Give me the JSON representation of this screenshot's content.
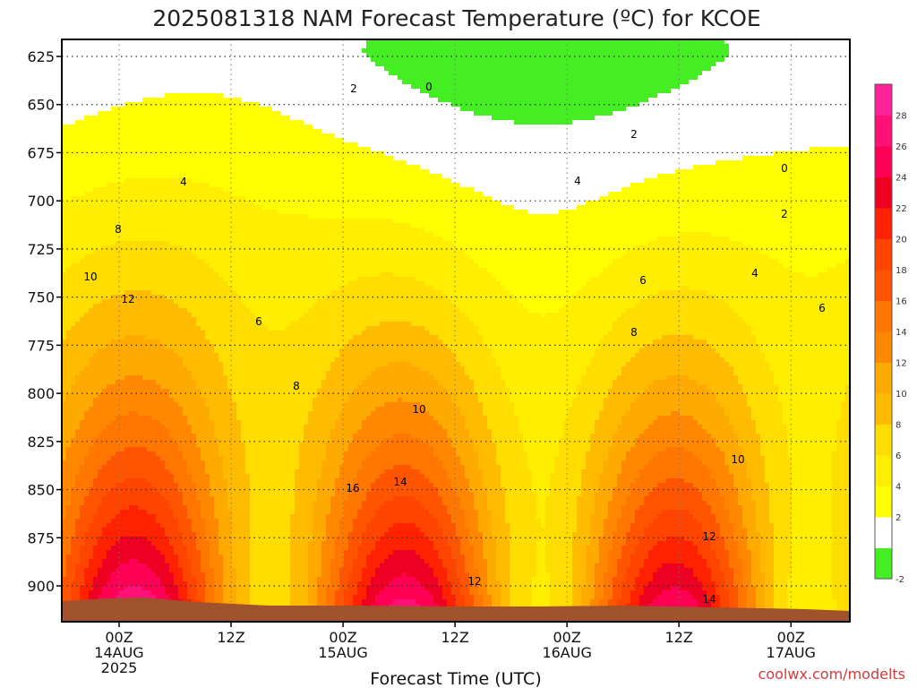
{
  "chart_data": {
    "type": "heatmap",
    "title": "2025081318 NAM Forecast Temperature (ºC) for KCOE",
    "xlabel": "Forecast Time (UTC)",
    "ylabel": "",
    "watermark": "coolwx.com/modelts",
    "y_ticks": [
      625,
      650,
      675,
      700,
      725,
      750,
      775,
      800,
      825,
      850,
      875,
      900
    ],
    "ylim": [
      615,
      916
    ],
    "x_range_hours": [
      -5,
      65
    ],
    "x_ticks": [
      {
        "hours": 0,
        "line1": "00Z",
        "line2": "14AUG",
        "line3": "2025"
      },
      {
        "hours": 12,
        "line1": "12Z",
        "line2": "",
        "line3": ""
      },
      {
        "hours": 24,
        "line1": "00Z",
        "line2": "15AUG",
        "line3": ""
      },
      {
        "hours": 36,
        "line1": "12Z",
        "line2": "",
        "line3": ""
      },
      {
        "hours": 48,
        "line1": "00Z",
        "line2": "16AUG",
        "line3": ""
      },
      {
        "hours": 60,
        "line1": "12Z",
        "line2": "",
        "line3": ""
      },
      {
        "hours": 72,
        "line1": "00Z",
        "line2": "17AUG",
        "line3": ""
      }
    ],
    "colorbar": {
      "levels": [
        -2,
        0,
        2,
        4,
        6,
        8,
        10,
        12,
        14,
        16,
        18,
        20,
        22,
        24,
        26,
        28,
        30
      ],
      "labels": [
        "-2",
        "2",
        "4",
        "6",
        "8",
        "10",
        "12",
        "14",
        "16",
        "18",
        "20",
        "22",
        "24",
        "26",
        "28"
      ],
      "colors": [
        "#44ee22",
        "#ffffff",
        "#ffff00",
        "#ffee00",
        "#ffdd00",
        "#ffbb00",
        "#ffaa00",
        "#ff8800",
        "#ff7700",
        "#ff5500",
        "#ff4400",
        "#ff2200",
        "#ee0022",
        "#ff0055",
        "#ff1177",
        "#ff2299"
      ]
    },
    "contour_labels": [
      "0",
      "0",
      "2",
      "2",
      "2",
      "4",
      "4",
      "4",
      "6",
      "6",
      "6",
      "8",
      "8",
      "8",
      "10",
      "10",
      "10",
      "12",
      "12",
      "12",
      "14",
      "14",
      "16"
    ],
    "zero_isotherm_color": "#aa0055",
    "ground_color": "#a0522d",
    "grid": true
  }
}
